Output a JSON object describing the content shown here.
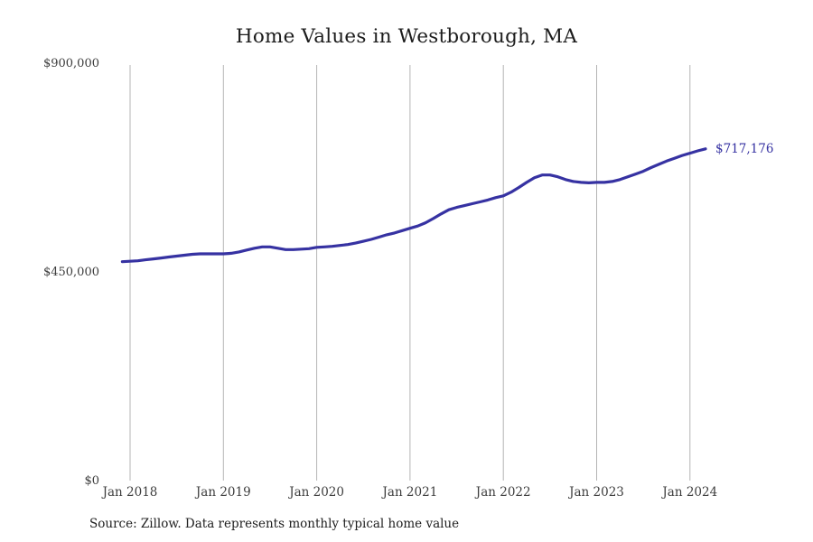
{
  "page": {
    "title": "Home Values in Westborough, MA",
    "source": "Source: Zillow. Data represents monthly typical home value"
  },
  "colors": {
    "line": "#3632a2",
    "gridline": "#b5b5b5",
    "axis_text": "#3d3d3d",
    "title_text": "#1c1c1c",
    "end_label_text": "#3632a2",
    "background": "#ffffff"
  },
  "y_axis": {
    "ticks": [
      {
        "label": "$900,000",
        "value": 900000
      },
      {
        "label": "$450,000",
        "value": 450000
      },
      {
        "label": "$0",
        "value": 0
      }
    ]
  },
  "x_axis": {
    "tick_labels": [
      "Jan 2018",
      "Jan 2019",
      "Jan 2020",
      "Jan 2021",
      "Jan 2022",
      "Jan 2023",
      "Jan 2024"
    ]
  },
  "end_label": "$717,176",
  "chart_data": {
    "type": "line",
    "title": "Home Values in Westborough, MA",
    "xlabel": "",
    "ylabel": "",
    "ylim": [
      0,
      900000
    ],
    "grid": "vertical-yearly-gridlines",
    "legend": "none",
    "final_value_label": "$717,176",
    "final_value": 717176,
    "series_name": "Typical home value (monthly, Zillow)",
    "x": [
      "Dec 2017",
      "Jan 2018",
      "Feb 2018",
      "Mar 2018",
      "Apr 2018",
      "May 2018",
      "Jun 2018",
      "Jul 2018",
      "Aug 2018",
      "Sep 2018",
      "Oct 2018",
      "Nov 2018",
      "Dec 2018",
      "Jan 2019",
      "Feb 2019",
      "Mar 2019",
      "Apr 2019",
      "May 2019",
      "Jun 2019",
      "Jul 2019",
      "Aug 2019",
      "Sep 2019",
      "Oct 2019",
      "Nov 2019",
      "Dec 2019",
      "Jan 2020",
      "Feb 2020",
      "Mar 2020",
      "Apr 2020",
      "May 2020",
      "Jun 2020",
      "Jul 2020",
      "Aug 2020",
      "Sep 2020",
      "Oct 2020",
      "Nov 2020",
      "Dec 2020",
      "Jan 2021",
      "Feb 2021",
      "Mar 2021",
      "Apr 2021",
      "May 2021",
      "Jun 2021",
      "Jul 2021",
      "Aug 2021",
      "Sep 2021",
      "Oct 2021",
      "Nov 2021",
      "Dec 2021",
      "Jan 2022",
      "Feb 2022",
      "Mar 2022",
      "Apr 2022",
      "May 2022",
      "Jun 2022",
      "Jul 2022",
      "Aug 2022",
      "Sep 2022",
      "Oct 2022",
      "Nov 2022",
      "Dec 2022",
      "Jan 2023",
      "Feb 2023",
      "Mar 2023",
      "Apr 2023",
      "May 2023",
      "Jun 2023",
      "Jul 2023",
      "Aug 2023",
      "Sep 2023",
      "Oct 2023",
      "Nov 2023",
      "Dec 2023",
      "Jan 2024",
      "Feb 2024",
      "Mar 2024"
    ],
    "values": [
      474000,
      475000,
      476000,
      478000,
      480000,
      482000,
      484000,
      486000,
      488000,
      490000,
      491000,
      491000,
      491000,
      491000,
      492000,
      495000,
      499000,
      503000,
      506000,
      506000,
      503000,
      500000,
      500000,
      501000,
      502000,
      505000,
      506000,
      507000,
      509000,
      511000,
      514000,
      518000,
      522000,
      527000,
      532000,
      536000,
      541000,
      546000,
      551000,
      558000,
      567000,
      577000,
      586000,
      591000,
      595000,
      599000,
      603000,
      607000,
      612000,
      616000,
      624000,
      634000,
      645000,
      655000,
      661000,
      661000,
      657000,
      651000,
      647000,
      645000,
      644000,
      645000,
      645000,
      647000,
      651000,
      657000,
      663000,
      669000,
      677000,
      684000,
      691000,
      697000,
      703000,
      708000,
      713000,
      717176
    ]
  }
}
